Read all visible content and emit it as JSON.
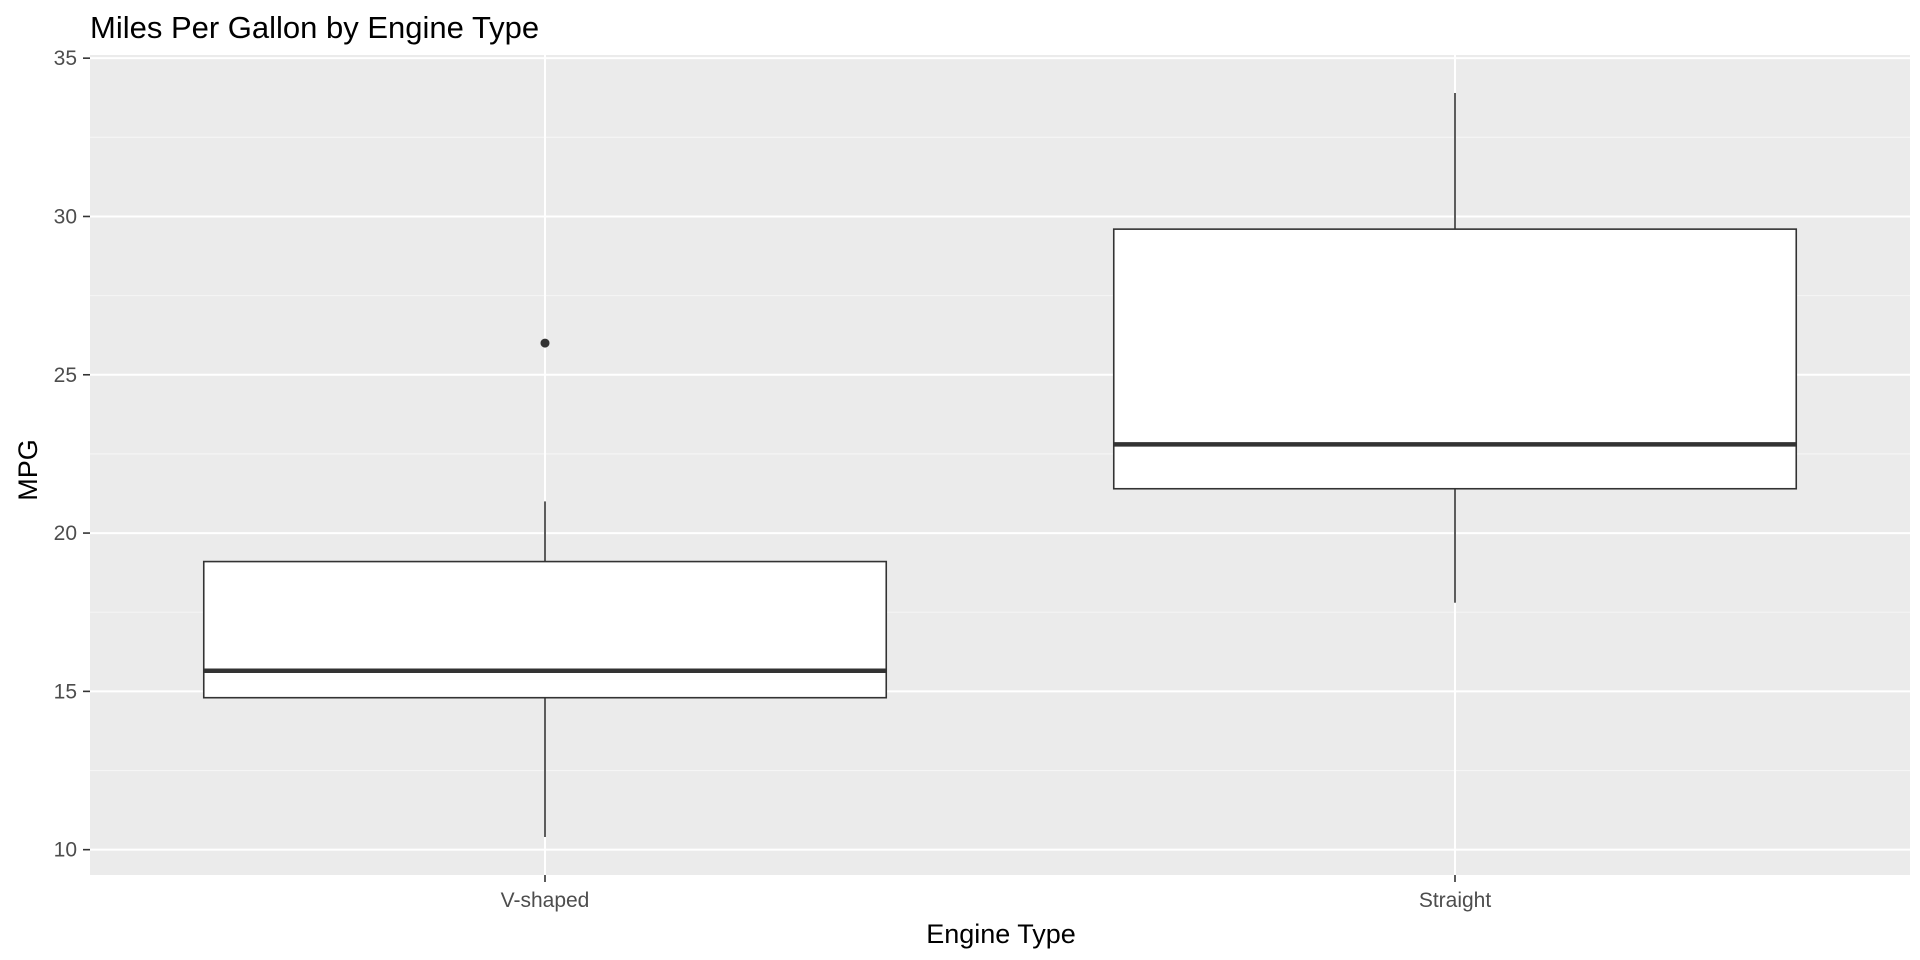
{
  "chart_data": {
    "type": "boxplot",
    "title": "Miles Per Gallon by Engine Type",
    "xlabel": "Engine Type",
    "ylabel": "MPG",
    "categories": [
      "V-shaped",
      "Straight"
    ],
    "ylim": [
      9.2,
      35.1
    ],
    "yticks": [
      10,
      15,
      20,
      25,
      30,
      35
    ],
    "grid": true,
    "legend": "none",
    "boxes": [
      {
        "category": "V-shaped",
        "min": 10.4,
        "q1": 14.8,
        "median": 15.65,
        "q3": 19.1,
        "max": 21.0,
        "outliers": [
          26.0
        ]
      },
      {
        "category": "Straight",
        "min": 17.8,
        "q1": 21.4,
        "median": 22.8,
        "q3": 29.6,
        "max": 33.9,
        "outliers": []
      }
    ]
  },
  "colors": {
    "panel_background": "#ebebeb",
    "grid_major": "#ffffff",
    "grid_minor": "#f5f5f5",
    "box_fill": "#ffffff",
    "box_stroke": "#333333",
    "tick_text": "#4d4d4d",
    "tick_mark": "#333333"
  }
}
